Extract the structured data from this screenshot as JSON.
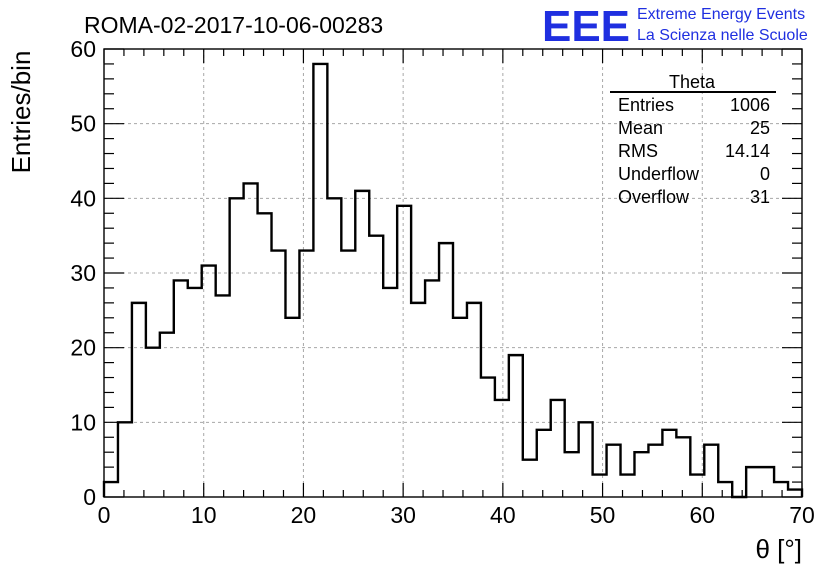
{
  "chart_data": {
    "type": "bar",
    "title": "ROMA-02-2017-10-06-00283",
    "xlabel": "θ [°]",
    "ylabel": "Entries/bin",
    "xlim": [
      0,
      70
    ],
    "ylim": [
      0,
      60
    ],
    "bin_width": 1.4,
    "x_ticks": [
      0,
      10,
      20,
      30,
      40,
      50,
      60,
      70
    ],
    "y_ticks": [
      0,
      10,
      20,
      30,
      40,
      50,
      60
    ],
    "grid": true,
    "values": [
      2,
      10,
      26,
      20,
      22,
      29,
      28,
      31,
      27,
      40,
      42,
      38,
      33,
      24,
      33,
      58,
      40,
      33,
      41,
      35,
      28,
      39,
      26,
      29,
      34,
      24,
      26,
      16,
      13,
      19,
      5,
      9,
      13,
      6,
      10,
      3,
      7,
      3,
      6,
      7,
      9,
      8,
      3,
      7,
      2,
      0,
      4,
      4,
      2,
      1
    ],
    "stats_box": {
      "title": "Theta",
      "rows": [
        {
          "label": "Entries",
          "value": "1006"
        },
        {
          "label": "Mean",
          "value": "25"
        },
        {
          "label": "RMS",
          "value": "14.14"
        },
        {
          "label": "Underflow",
          "value": "0"
        },
        {
          "label": "Overflow",
          "value": "31"
        }
      ]
    }
  },
  "logo": {
    "mark": "EEE",
    "line1": "Extreme Energy Events",
    "line2": "La Scienza nelle Scuole",
    "color": "#1f2fe0"
  }
}
